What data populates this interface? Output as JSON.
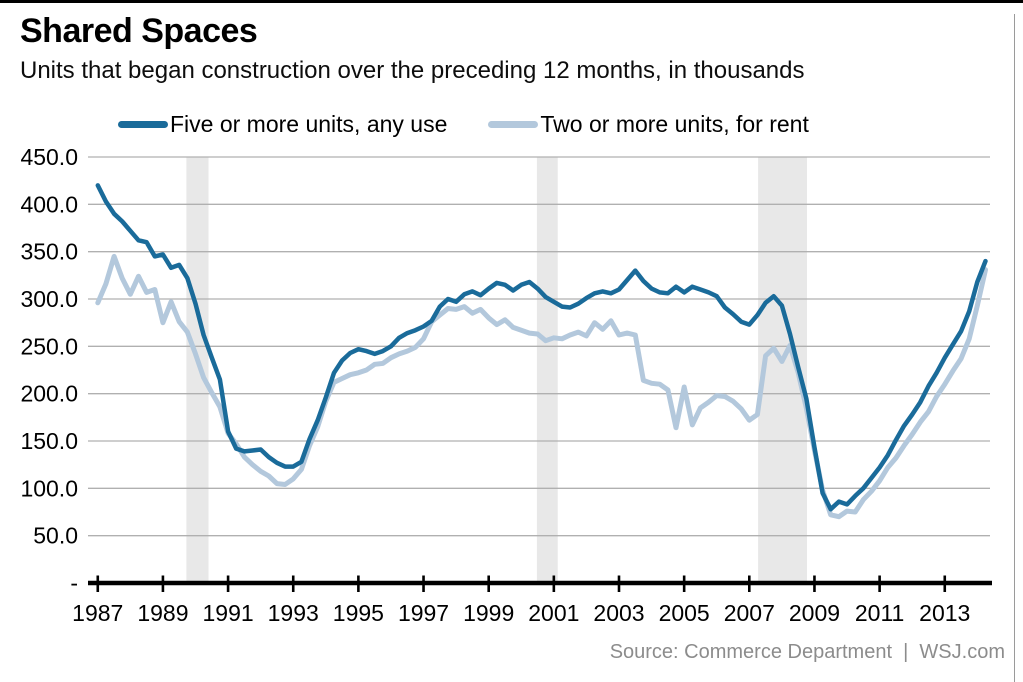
{
  "header": {
    "title": "Shared Spaces",
    "subtitle": "Units that began construction over the preceding 12 months, in thousands"
  },
  "legend": {
    "items": [
      {
        "label": "Five or more units, any use",
        "color": "#1a6b9a"
      },
      {
        "label": "Two or more units, for rent",
        "color": "#b3c8dc"
      }
    ]
  },
  "source_line": "Source: Commerce Department  |  WSJ.com",
  "chart_data": {
    "type": "line",
    "title": "Shared Spaces",
    "subtitle": "Units that began construction over the preceding 12 months, in thousands",
    "xlabel": "",
    "ylabel": "Units that began construction over the preceding 12 months, in thousands",
    "x_start": 1987.0,
    "x_step": 0.25,
    "xlim": [
      1986.7,
      2014.45
    ],
    "ylim": [
      0,
      450
    ],
    "grid": true,
    "legend_position": "top",
    "x_ticks": [
      {
        "v": 1987,
        "label": "1987"
      },
      {
        "v": 1989,
        "label": "1989"
      },
      {
        "v": 1991,
        "label": "1991"
      },
      {
        "v": 1993,
        "label": "1993"
      },
      {
        "v": 1995,
        "label": "1995"
      },
      {
        "v": 1997,
        "label": "1997"
      },
      {
        "v": 1999,
        "label": "1999"
      },
      {
        "v": 2001,
        "label": "2001"
      },
      {
        "v": 2003,
        "label": "2003"
      },
      {
        "v": 2005,
        "label": "2005"
      },
      {
        "v": 2007,
        "label": "2007"
      },
      {
        "v": 2009,
        "label": "2009"
      },
      {
        "v": 2011,
        "label": "2011"
      },
      {
        "v": 2013,
        "label": "2013"
      }
    ],
    "y_ticks": [
      {
        "v": 450,
        "label": "450.0"
      },
      {
        "v": 400,
        "label": "400.0"
      },
      {
        "v": 350,
        "label": "350.0"
      },
      {
        "v": 300,
        "label": "300.0"
      },
      {
        "v": 250,
        "label": "250.0"
      },
      {
        "v": 200,
        "label": "200.0"
      },
      {
        "v": 150,
        "label": "150.0"
      },
      {
        "v": 100,
        "label": "100.0"
      },
      {
        "v": 50,
        "label": "50.0"
      },
      {
        "v": 0,
        "label": "-"
      }
    ],
    "recession_bands": [
      [
        1989.72,
        1990.4
      ],
      [
        2000.48,
        2001.12
      ],
      [
        2007.27,
        2008.77
      ]
    ],
    "colors": {
      "band": "#e8e8e8",
      "grid": "#b0b0b0",
      "axis": "#000000"
    },
    "series": [
      {
        "name": "Five or more units, any use",
        "color": "#1a6b9a",
        "width": 4.5,
        "values": [
          420,
          403,
          390,
          382,
          372,
          362,
          360,
          345,
          347,
          333,
          336,
          322,
          295,
          262,
          238,
          215,
          160,
          142,
          139,
          140,
          141,
          133,
          127,
          123,
          123,
          128,
          152,
          172,
          196,
          222,
          235,
          243,
          247,
          245,
          242,
          245,
          250,
          259,
          264,
          267,
          271,
          277,
          292,
          300,
          297,
          305,
          308,
          304,
          311,
          317,
          315,
          309,
          315,
          318,
          311,
          302,
          297,
          292,
          291,
          295,
          301,
          306,
          308,
          306,
          310,
          320,
          330,
          319,
          311,
          307,
          306,
          313,
          307,
          313,
          310,
          307,
          303,
          291,
          284,
          276,
          273,
          283,
          296,
          303,
          293,
          263,
          228,
          195,
          143,
          95,
          78,
          86,
          83,
          92,
          100,
          111,
          122,
          135,
          151,
          166,
          178,
          191,
          208,
          222,
          238,
          252,
          266,
          287,
          318,
          340
        ]
      },
      {
        "name": "Two or more units, for rent",
        "color": "#b3c8dc",
        "width": 5,
        "values": [
          296,
          316,
          345,
          322,
          305,
          324,
          307,
          310,
          275,
          297,
          276,
          265,
          242,
          217,
          201,
          186,
          158,
          147,
          133,
          125,
          118,
          113,
          105,
          104,
          110,
          120,
          145,
          165,
          192,
          212,
          216,
          220,
          222,
          225,
          231,
          232,
          238,
          242,
          245,
          249,
          258,
          276,
          283,
          290,
          289,
          292,
          285,
          289,
          280,
          273,
          278,
          270,
          267,
          264,
          263,
          256,
          259,
          258,
          262,
          265,
          261,
          275,
          268,
          277,
          262,
          264,
          262,
          214,
          211,
          210,
          204,
          164,
          207,
          167,
          185,
          191,
          198,
          197,
          192,
          184,
          172,
          178,
          240,
          248,
          234,
          251,
          222,
          185,
          140,
          98,
          72,
          70,
          76,
          75,
          88,
          97,
          108,
          122,
          132,
          145,
          157,
          170,
          181,
          197,
          210,
          224,
          237,
          258,
          293,
          331
        ]
      }
    ]
  }
}
